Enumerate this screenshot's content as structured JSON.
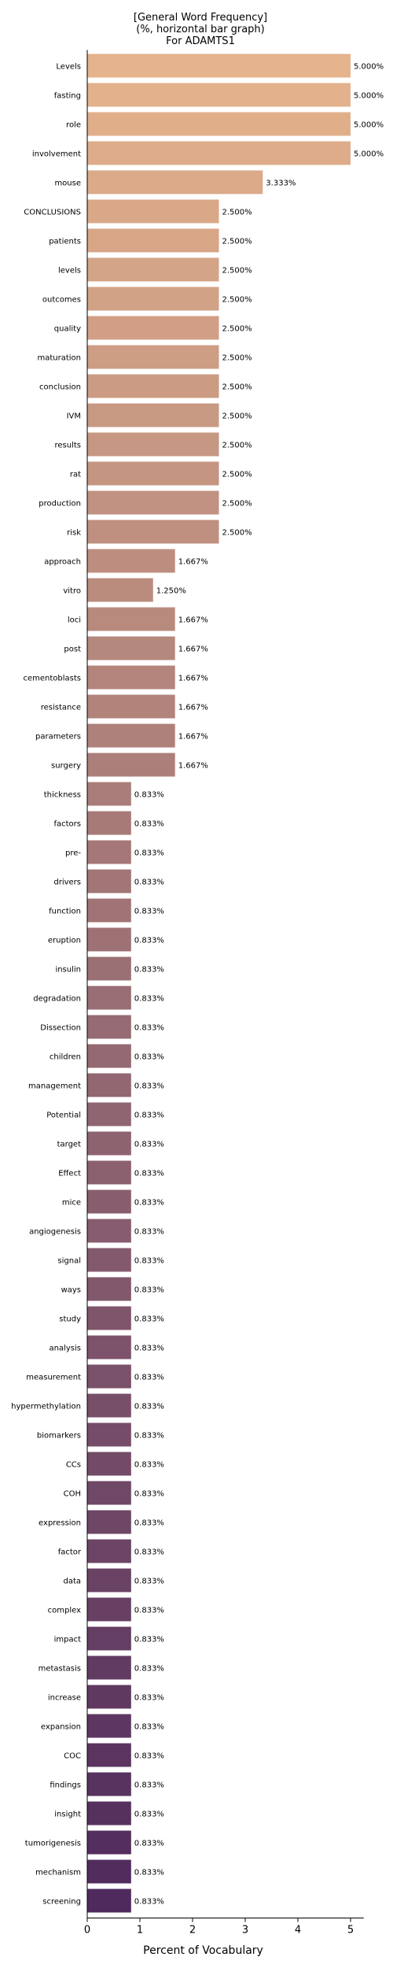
{
  "chart_data": {
    "type": "bar",
    "orientation": "horizontal",
    "title_lines": [
      "[General Word Frequency]",
      "(%, horizontal bar graph)",
      "For ADAMTS1"
    ],
    "xlabel": "Percent of Vocabulary",
    "ylabel": "",
    "xlim": [
      0,
      5.25
    ],
    "xticks": [
      0,
      1,
      2,
      3,
      4,
      5
    ],
    "grid": false,
    "legend": "none",
    "palette": "flare (peach to deep purple, top to bottom)",
    "categories": [
      "Levels",
      "fasting",
      "role",
      "involvement",
      "mouse",
      "CONCLUSIONS",
      "patients",
      "levels",
      "outcomes",
      "quality",
      "maturation",
      "conclusion",
      "IVM",
      "results",
      "rat",
      "production",
      "risk",
      "approach",
      "vitro",
      "loci",
      "post",
      "cementoblasts",
      "resistance",
      "parameters",
      "surgery",
      "thickness",
      "factors",
      "pre-",
      "drivers",
      "function",
      "eruption",
      "insulin",
      "degradation",
      "Dissection",
      "children",
      "management",
      "Potential",
      "target",
      "Effect",
      "mice",
      "angiogenesis",
      "signal",
      "ways",
      "study",
      "analysis",
      "measurement",
      "hypermethylation",
      "biomarkers",
      "CCs",
      "COH",
      "expression",
      "factor",
      "data",
      "complex",
      "impact",
      "metastasis",
      "increase",
      "expansion",
      "COC",
      "findings",
      "insight",
      "tumorigenesis",
      "mechanism",
      "screening"
    ],
    "values": [
      5.0,
      5.0,
      5.0,
      5.0,
      3.333,
      2.5,
      2.5,
      2.5,
      2.5,
      2.5,
      2.5,
      2.5,
      2.5,
      2.5,
      2.5,
      2.5,
      2.5,
      1.667,
      1.25,
      1.667,
      1.667,
      1.667,
      1.667,
      1.667,
      1.667,
      0.833,
      0.833,
      0.833,
      0.833,
      0.833,
      0.833,
      0.833,
      0.833,
      0.833,
      0.833,
      0.833,
      0.833,
      0.833,
      0.833,
      0.833,
      0.833,
      0.833,
      0.833,
      0.833,
      0.833,
      0.833,
      0.833,
      0.833,
      0.833,
      0.833,
      0.833,
      0.833,
      0.833,
      0.833,
      0.833,
      0.833,
      0.833,
      0.833,
      0.833,
      0.833,
      0.833,
      0.833,
      0.833,
      0.833
    ],
    "value_labels": [
      "5.000%",
      "5.000%",
      "5.000%",
      "5.000%",
      "3.333%",
      "2.500%",
      "2.500%",
      "2.500%",
      "2.500%",
      "2.500%",
      "2.500%",
      "2.500%",
      "2.500%",
      "2.500%",
      "2.500%",
      "2.500%",
      "2.500%",
      "1.667%",
      "1.250%",
      "1.667%",
      "1.667%",
      "1.667%",
      "1.667%",
      "1.667%",
      "1.667%",
      "0.833%",
      "0.833%",
      "0.833%",
      "0.833%",
      "0.833%",
      "0.833%",
      "0.833%",
      "0.833%",
      "0.833%",
      "0.833%",
      "0.833%",
      "0.833%",
      "0.833%",
      "0.833%",
      "0.833%",
      "0.833%",
      "0.833%",
      "0.833%",
      "0.833%",
      "0.833%",
      "0.833%",
      "0.833%",
      "0.833%",
      "0.833%",
      "0.833%",
      "0.833%",
      "0.833%",
      "0.833%",
      "0.833%",
      "0.833%",
      "0.833%",
      "0.833%",
      "0.833%",
      "0.833%",
      "0.833%",
      "0.833%",
      "0.833%",
      "0.833%",
      "0.833%"
    ],
    "color_start": "#e5b38c",
    "color_end": "#4f2a5c"
  }
}
